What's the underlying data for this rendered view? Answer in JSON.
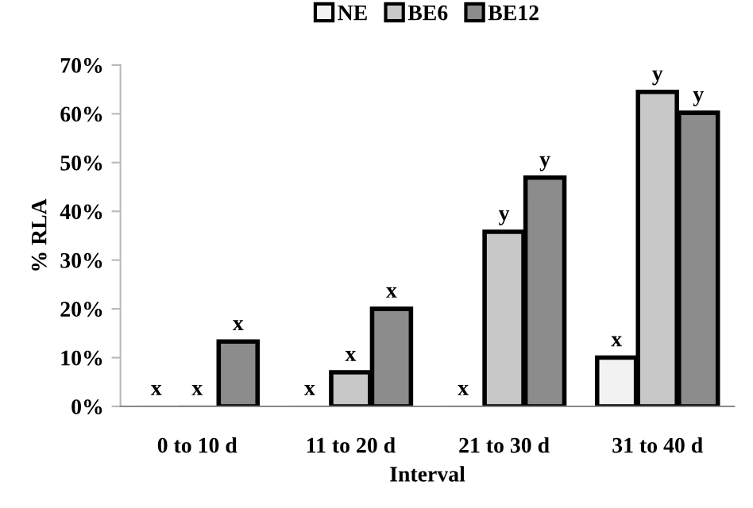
{
  "chart_data": {
    "type": "bar",
    "xlabel": "Interval",
    "ylabel": "% RLA",
    "categories": [
      "0 to 10 d",
      "11 to 20 d",
      "21 to 30 d",
      "31 to 40 d"
    ],
    "series": [
      {
        "name": "NE",
        "color": "#f2f2f2",
        "values": [
          0,
          0,
          0,
          10
        ],
        "value_labels": [
          "x",
          "x",
          "x",
          "x"
        ]
      },
      {
        "name": "BE6",
        "color": "#c8c8c8",
        "values": [
          0,
          7,
          35.8,
          64.5
        ],
        "value_labels": [
          "x",
          "x",
          "y",
          "y"
        ]
      },
      {
        "name": "BE12",
        "color": "#8c8c8c",
        "values": [
          13.3,
          20,
          46.9,
          60.2
        ],
        "value_labels": [
          "x",
          "x",
          "y",
          "y"
        ]
      }
    ],
    "ylim": [
      0,
      70
    ],
    "yticks": [
      {
        "value": 0,
        "label": "0%"
      },
      {
        "value": 10,
        "label": "10%"
      },
      {
        "value": 20,
        "label": "20%"
      },
      {
        "value": 30,
        "label": "30%"
      },
      {
        "value": 40,
        "label": "40%"
      },
      {
        "value": 50,
        "label": "50%"
      },
      {
        "value": 60,
        "label": "60%"
      },
      {
        "value": 70,
        "label": "70%"
      }
    ],
    "grid": false,
    "legend": "top"
  }
}
